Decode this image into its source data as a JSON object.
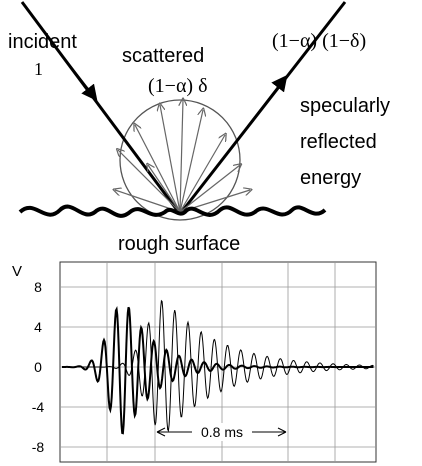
{
  "diagram": {
    "labels": {
      "incident": "incident",
      "incident_energy": "1",
      "scattered": "scattered",
      "scattered_energy": "(1−α) δ",
      "specular_energy": "(1−α) (1−δ)",
      "specular_1": "specularly",
      "specular_2": "reflected",
      "specular_3": "energy",
      "surface": "rough surface"
    },
    "plot": {
      "y_axis_label": "V",
      "ylim": [
        -9.5,
        10.5
      ],
      "yticks": [
        8,
        4,
        0,
        -4,
        -8
      ],
      "interval_label": "0.8 ms"
    }
  }
}
